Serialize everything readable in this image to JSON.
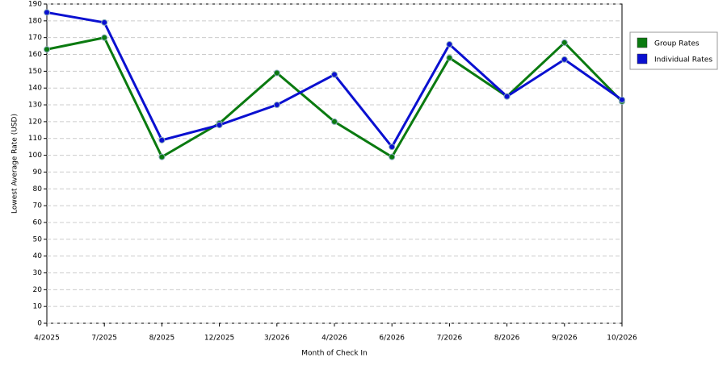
{
  "chart_data": {
    "type": "line",
    "x_label": "Month of Check In",
    "y_label": "Lowest Average Rate (USD)",
    "categories": [
      "4/2025",
      "7/2025",
      "8/2025",
      "12/2025",
      "3/2026",
      "4/2026",
      "6/2026",
      "7/2026",
      "8/2026",
      "9/2026",
      "10/2026"
    ],
    "series": [
      {
        "name": "Group Rates",
        "color": "#0a7a10",
        "values": [
          163,
          170,
          99,
          119,
          149,
          120,
          99,
          158,
          135,
          167,
          132
        ]
      },
      {
        "name": "Individual Rates",
        "color": "#0a10d0",
        "values": [
          185,
          179,
          109,
          118,
          130,
          148,
          105,
          166,
          135,
          157,
          133
        ]
      }
    ],
    "ylim": [
      0,
      190
    ],
    "yticks": [
      0,
      10,
      20,
      30,
      40,
      50,
      60,
      70,
      80,
      90,
      100,
      110,
      120,
      130,
      140,
      150,
      160,
      170,
      180,
      190
    ],
    "grid": true,
    "legend": "top-right"
  }
}
